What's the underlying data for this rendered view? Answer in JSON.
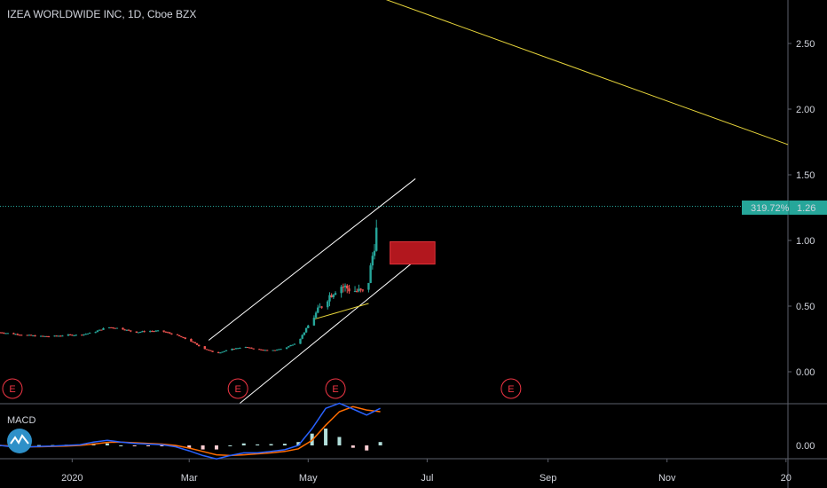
{
  "header": {
    "title": "IZEA WORLDWIDE INC, 1D, Cboe BZX"
  },
  "price_badge": {
    "percent": "319.72%",
    "price": "1.26"
  },
  "macd_pane": {
    "label": "MACD"
  },
  "earnings_marker_label": "E",
  "colors": {
    "background": "#000000",
    "up": "#26a69a",
    "down": "#ef5350",
    "macd_line": "#2962ff",
    "signal_line": "#ff6d00",
    "trend_yellow": "#e6d43a",
    "channel": "#ffffff",
    "badge_bg": "#26a69a",
    "box_red": "#b2171e"
  },
  "chart_data": [
    {
      "type": "candlestick",
      "title": "IZEA WORLDWIDE INC, 1D, Cboe BZX",
      "y_ticks": [
        "2.50",
        "2.00",
        "1.50",
        "1.00",
        "0.50",
        "0.00"
      ],
      "y_tick_values": [
        2.5,
        2.0,
        1.5,
        1.0,
        0.5,
        0.0
      ],
      "x_ticks": [
        "2020",
        "Mar",
        "May",
        "Jul",
        "Sep",
        "Nov",
        "20"
      ],
      "ylim": [
        -0.2,
        2.85
      ],
      "x_range": [
        "2019-11-25",
        "2021-01-02"
      ],
      "last_price": 1.26,
      "change_percent": "319.72%",
      "price_series": [
        {
          "d": "2019-11-25",
          "c": 0.3
        },
        {
          "d": "2019-12-01",
          "c": 0.29
        },
        {
          "d": "2019-12-08",
          "c": 0.28
        },
        {
          "d": "2019-12-15",
          "c": 0.27
        },
        {
          "d": "2019-12-22",
          "c": 0.27
        },
        {
          "d": "2019-12-29",
          "c": 0.28
        },
        {
          "d": "2020-01-05",
          "c": 0.28
        },
        {
          "d": "2020-01-12",
          "c": 0.3
        },
        {
          "d": "2020-01-19",
          "c": 0.34
        },
        {
          "d": "2020-01-26",
          "c": 0.33
        },
        {
          "d": "2020-02-02",
          "c": 0.3
        },
        {
          "d": "2020-02-09",
          "c": 0.31
        },
        {
          "d": "2020-02-16",
          "c": 0.31
        },
        {
          "d": "2020-02-23",
          "c": 0.28
        },
        {
          "d": "2020-03-01",
          "c": 0.24
        },
        {
          "d": "2020-03-08",
          "c": 0.18
        },
        {
          "d": "2020-03-15",
          "c": 0.14
        },
        {
          "d": "2020-03-22",
          "c": 0.17
        },
        {
          "d": "2020-03-29",
          "c": 0.19
        },
        {
          "d": "2020-04-05",
          "c": 0.17
        },
        {
          "d": "2020-04-12",
          "c": 0.16
        },
        {
          "d": "2020-04-19",
          "c": 0.18
        },
        {
          "d": "2020-04-26",
          "c": 0.23
        },
        {
          "d": "2020-05-03",
          "c": 0.4
        },
        {
          "d": "2020-05-10",
          "c": 0.55
        },
        {
          "d": "2020-05-17",
          "c": 0.66
        },
        {
          "d": "2020-05-24",
          "c": 0.62
        },
        {
          "d": "2020-05-31",
          "c": 0.6
        },
        {
          "d": "2020-06-07",
          "c": 1.26
        }
      ],
      "trendlines": [
        {
          "name": "descending-yellow",
          "from": [
            "2020-05-10",
            3.0
          ],
          "to": [
            "2021-01-02",
            1.73
          ]
        },
        {
          "name": "channel-upper",
          "from": [
            "2020-03-11",
            0.24
          ],
          "to": [
            "2020-06-25",
            1.47
          ]
        },
        {
          "name": "channel-lower",
          "from": [
            "2020-03-27",
            -0.24
          ],
          "to": [
            "2020-07-05",
            0.97
          ]
        },
        {
          "name": "support-yellow",
          "from": [
            "2020-05-04",
            0.4
          ],
          "to": [
            "2020-06-01",
            0.52
          ]
        }
      ],
      "zone": {
        "from": "2020-06-12",
        "to": "2020-07-05",
        "low": 0.82,
        "high": 0.99
      },
      "earnings_dates": [
        "2019-11-25",
        "2020-03-26",
        "2020-05-15",
        "2020-08-13"
      ]
    },
    {
      "type": "macd",
      "title": "MACD",
      "y_ticks": [
        "0.00"
      ],
      "macd": [
        0.0,
        -0.004,
        -0.005,
        -0.003,
        -0.002,
        0.0,
        0.002,
        0.01,
        0.015,
        0.01,
        0.006,
        0.004,
        0.002,
        -0.004,
        -0.016,
        -0.03,
        -0.04,
        -0.03,
        -0.022,
        -0.022,
        -0.018,
        -0.013,
        0.0,
        0.05,
        0.11,
        0.125,
        0.108,
        0.09,
        0.11
      ],
      "signal": [
        0.0,
        -0.002,
        -0.004,
        -0.004,
        -0.003,
        -0.002,
        0.0,
        0.004,
        0.009,
        0.01,
        0.008,
        0.006,
        0.004,
        0.0,
        -0.008,
        -0.018,
        -0.028,
        -0.03,
        -0.028,
        -0.025,
        -0.022,
        -0.018,
        -0.01,
        0.015,
        0.06,
        0.1,
        0.115,
        0.105,
        0.1
      ]
    }
  ]
}
